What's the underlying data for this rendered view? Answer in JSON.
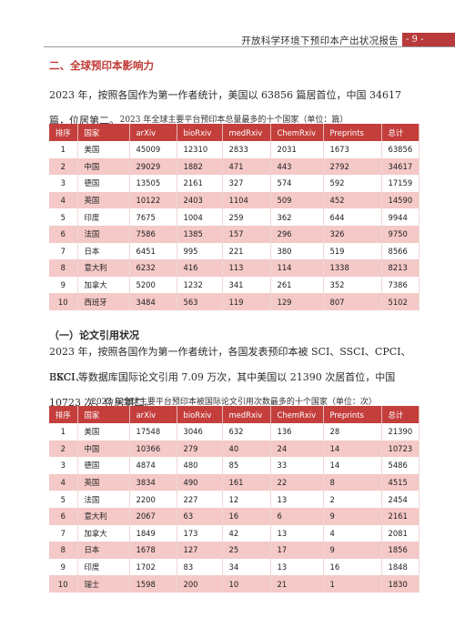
{
  "header": {
    "title": "开放科学环境下预印本产出状况报告",
    "page": "- 9 -"
  },
  "section": {
    "title": "二、全球预印本影响力",
    "paragraph": "2023 年，按照各国作为第一作者统计，美国以 63856 篇居首位，中国 34617 篇，位居第二。"
  },
  "table1": {
    "caption": "2023 年全球主要平台预印本总量最多的十个国家（单位：篇）",
    "headers": [
      "排序",
      "国家",
      "arXiv",
      "bioRxiv",
      "medRxiv",
      "ChemRxiv",
      "Preprints",
      "总计"
    ],
    "rows": [
      [
        "1",
        "美国",
        "45009",
        "12310",
        "2833",
        "2031",
        "1673",
        "63856"
      ],
      [
        "2",
        "中国",
        "29029",
        "1882",
        "471",
        "443",
        "2792",
        "34617"
      ],
      [
        "3",
        "德国",
        "13505",
        "2161",
        "327",
        "574",
        "592",
        "17159"
      ],
      [
        "4",
        "英国",
        "10122",
        "2403",
        "1104",
        "509",
        "452",
        "14590"
      ],
      [
        "5",
        "印度",
        "7675",
        "1004",
        "259",
        "362",
        "644",
        "9944"
      ],
      [
        "6",
        "法国",
        "7586",
        "1385",
        "157",
        "296",
        "326",
        "9750"
      ],
      [
        "7",
        "日本",
        "6451",
        "995",
        "221",
        "380",
        "519",
        "8566"
      ],
      [
        "8",
        "意大利",
        "6232",
        "416",
        "113",
        "114",
        "1338",
        "8213"
      ],
      [
        "9",
        "加拿大",
        "5200",
        "1232",
        "341",
        "261",
        "352",
        "7386"
      ],
      [
        "10",
        "西班牙",
        "3484",
        "563",
        "119",
        "129",
        "807",
        "5102"
      ]
    ]
  },
  "subsection": {
    "title": "（一）论文引用状况",
    "paragraph_line1": "2023 年，按照各国作为第一作者统计，各国发表预印本被 SCI、SSCI、CPCI、BKCI、",
    "paragraph_line2": "ESCI 等数据库国际论文引用 7.09 万次，其中美国以 21390 次居首位，中国 10723 次，位居第二。"
  },
  "table2": {
    "caption": "2023 年全球主要平台预印本被国际论文引用次数最多的十个国家（单位：次）",
    "headers": [
      "排序",
      "国家",
      "arXiv",
      "bioRxiv",
      "medRxiv",
      "ChemRxiv",
      "Preprints",
      "总计"
    ],
    "rows": [
      [
        "1",
        "美国",
        "17548",
        "3046",
        "632",
        "136",
        "28",
        "21390"
      ],
      [
        "2",
        "中国",
        "10366",
        "279",
        "40",
        "24",
        "14",
        "10723"
      ],
      [
        "3",
        "德国",
        "4874",
        "480",
        "85",
        "33",
        "14",
        "5486"
      ],
      [
        "4",
        "英国",
        "3834",
        "490",
        "161",
        "22",
        "8",
        "4515"
      ],
      [
        "5",
        "法国",
        "2200",
        "227",
        "12",
        "13",
        "2",
        "2454"
      ],
      [
        "6",
        "意大利",
        "2067",
        "63",
        "16",
        "6",
        "9",
        "2161"
      ],
      [
        "7",
        "加拿大",
        "1849",
        "173",
        "42",
        "13",
        "4",
        "2081"
      ],
      [
        "8",
        "日本",
        "1678",
        "127",
        "25",
        "17",
        "9",
        "1856"
      ],
      [
        "9",
        "印度",
        "1702",
        "83",
        "34",
        "13",
        "16",
        "1848"
      ],
      [
        "10",
        "瑞士",
        "1598",
        "200",
        "10",
        "21",
        "1",
        "1830"
      ]
    ]
  }
}
